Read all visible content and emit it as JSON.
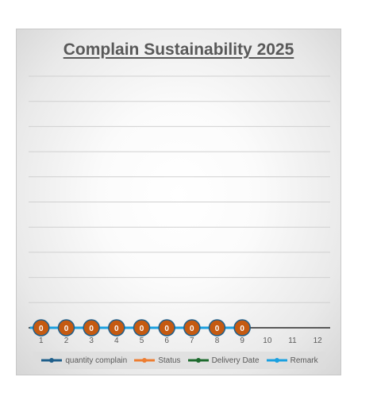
{
  "chart_data": {
    "type": "line",
    "title": "Complain Sustainability 2025",
    "categories": [
      "1",
      "2",
      "3",
      "4",
      "5",
      "6",
      "7",
      "8",
      "9",
      "10",
      "11",
      "12"
    ],
    "series": [
      {
        "name": "quantity complain",
        "values": [
          0,
          0,
          0,
          0,
          0,
          0,
          0,
          0,
          0,
          null,
          null,
          null
        ],
        "color": "#1f5f8b"
      },
      {
        "name": "Status",
        "values": [
          null,
          null,
          null,
          null,
          null,
          null,
          null,
          null,
          null,
          null,
          null,
          null
        ],
        "color": "#ed7d31"
      },
      {
        "name": "Delivery Date",
        "values": [
          null,
          null,
          null,
          null,
          null,
          null,
          null,
          null,
          null,
          null,
          null,
          null
        ],
        "color": "#1e6b2e"
      },
      {
        "name": "Remark",
        "values": [
          0,
          0,
          0,
          0,
          0,
          0,
          0,
          0,
          0,
          null,
          null,
          null
        ],
        "color": "#1aa0e0"
      }
    ],
    "data_labels": [
      "0",
      "0",
      "0",
      "0",
      "0",
      "0",
      "0",
      "0",
      "0"
    ],
    "data_label_color": "#c55a11",
    "grid": true,
    "legend_position": "bottom"
  }
}
